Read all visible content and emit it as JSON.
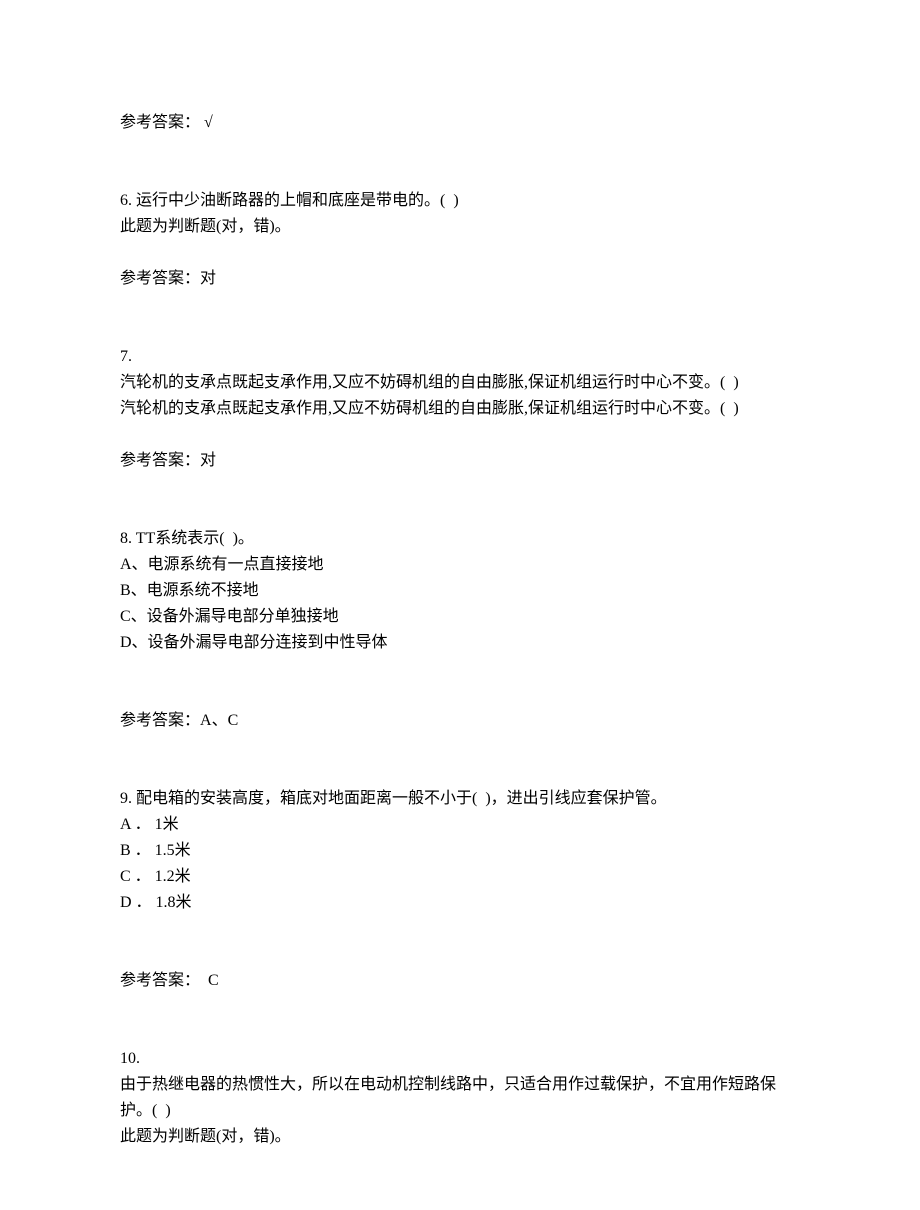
{
  "q5_answer_label": "参考答案：",
  "q5_answer_value": " √",
  "q6_number": "6.",
  "q6_text": " 运行中少油断路器的上帽和底座是带电的。(  )",
  "q6_type": "此题为判断题(对，错)。",
  "q6_answer_label": "参考答案：",
  "q6_answer_value": "对",
  "q7_number": "7.",
  "q7_line1": "汽轮机的支承点既起支承作用,又应不妨碍机组的自由膨胀,保证机组运行时中心不变。(  )",
  "q7_line2": "汽轮机的支承点既起支承作用,又应不妨碍机组的自由膨胀,保证机组运行时中心不变。(  )",
  "q7_answer_label": "参考答案：",
  "q7_answer_value": "对",
  "q8_number": "8.",
  "q8_text": " TT系统表示(  )。",
  "q8_opt_a": "A、电源系统有一点直接接地",
  "q8_opt_b": "B、电源系统不接地",
  "q8_opt_c": "C、设备外漏导电部分单独接地",
  "q8_opt_d": "D、设备外漏导电部分连接到中性导体",
  "q8_answer_label": "参考答案：",
  "q8_answer_value": "A、C",
  "q9_number": "9.",
  "q9_text": " 配电箱的安装高度，箱底对地面距离一般不小于(  )，进出引线应套保护管。",
  "q9_opt_a": "A ． 1米",
  "q9_opt_b": "B ． 1.5米",
  "q9_opt_c": "C ． 1.2米",
  "q9_opt_d": "D ． 1.8米",
  "q9_answer_label": "参考答案：",
  "q9_answer_value": "  C",
  "q10_number": "10.",
  "q10_text": "由于热继电器的热惯性大，所以在电动机控制线路中，只适合用作过载保护，不宜用作短路保护。(  )",
  "q10_type": "此题为判断题(对，错)。"
}
